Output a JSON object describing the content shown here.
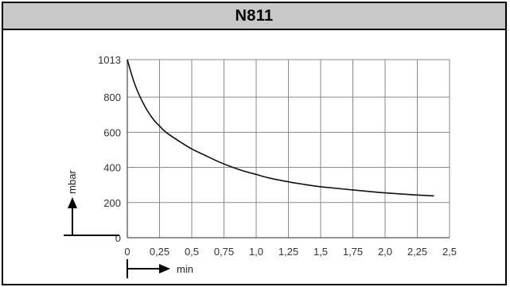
{
  "header": {
    "title": "N811"
  },
  "chart_data": {
    "type": "line",
    "title": "",
    "xlabel": "min",
    "ylabel": "mbar",
    "xlim": [
      0,
      2.5
    ],
    "ylim": [
      0,
      1013
    ],
    "x_ticks": [
      0,
      0.25,
      0.5,
      0.75,
      1.0,
      1.25,
      1.5,
      1.75,
      2.0,
      2.25,
      2.5
    ],
    "x_tick_labels": [
      "0",
      "0,25",
      "0,5",
      "0,75",
      "1,0",
      "1,25",
      "1,5",
      "1,75",
      "2,0",
      "2,25",
      "2,5"
    ],
    "y_ticks": [
      0,
      200,
      400,
      600,
      800,
      1013
    ],
    "y_tick_labels": [
      "0",
      "200",
      "400",
      "600",
      "800",
      "1013"
    ],
    "grid": true,
    "series": [
      {
        "x": [
          0,
          0.05,
          0.1,
          0.15,
          0.2,
          0.25,
          0.3,
          0.4,
          0.5,
          0.6,
          0.7,
          0.8,
          0.9,
          1.0,
          1.1,
          1.25,
          1.4,
          1.5,
          1.75,
          2.0,
          2.25,
          2.38
        ],
        "y": [
          1013,
          890,
          800,
          730,
          675,
          635,
          600,
          550,
          505,
          470,
          435,
          405,
          380,
          360,
          340,
          318,
          300,
          290,
          272,
          255,
          243,
          238
        ]
      }
    ],
    "colors": {
      "line": "#111111",
      "grid": "#8a8a8a",
      "axis": "#555555"
    }
  }
}
